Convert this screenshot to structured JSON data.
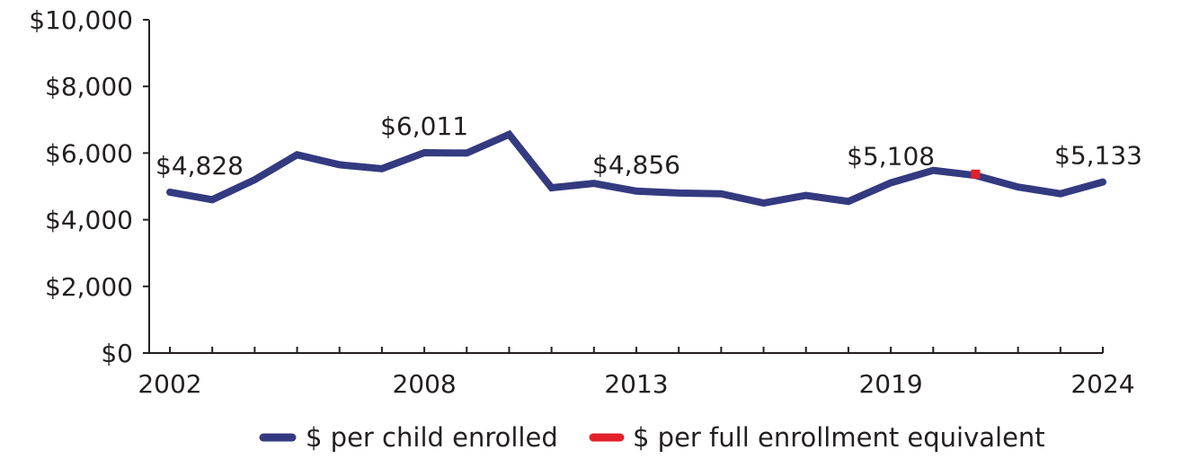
{
  "chart_data": {
    "type": "line",
    "xlim": [
      2002,
      2024
    ],
    "ylim": [
      0,
      10000
    ],
    "yticks": [
      0,
      2000,
      4000,
      6000,
      8000,
      10000
    ],
    "ytick_labels": [
      "$0",
      "$2,000",
      "$4,000",
      "$6,000",
      "$8,000",
      "$10,000"
    ],
    "xticks_labeled": [
      2002,
      2008,
      2013,
      2019,
      2024
    ],
    "xtick_labels": [
      "2002",
      "2008",
      "2013",
      "2019",
      "2024"
    ],
    "grid": false,
    "legend_position": "bottom-center",
    "series": [
      {
        "name": "$ per child enrolled",
        "color": "#343a80",
        "x": [
          2002,
          2003,
          2004,
          2005,
          2006,
          2007,
          2008,
          2009,
          2010,
          2011,
          2012,
          2013,
          2014,
          2015,
          2016,
          2017,
          2018,
          2019,
          2020,
          2021,
          2022,
          2023,
          2024
        ],
        "y": [
          4828,
          4600,
          5200,
          5950,
          5650,
          5530,
          6011,
          6000,
          6560,
          4960,
          5090,
          4856,
          4800,
          4780,
          4500,
          4730,
          4550,
          5108,
          5480,
          5330,
          4980,
          4780,
          5133
        ]
      },
      {
        "name": "$ per full enrollment equivalent",
        "color": "#e3202a",
        "x": [
          2021
        ],
        "y": [
          5370
        ]
      }
    ],
    "data_labels": [
      {
        "x": 2002,
        "y": 4828,
        "text": "$4,828"
      },
      {
        "x": 2008,
        "y": 6011,
        "text": "$6,011"
      },
      {
        "x": 2013,
        "y": 4856,
        "text": "$4,856"
      },
      {
        "x": 2019,
        "y": 5108,
        "text": "$5,108"
      },
      {
        "x": 2024,
        "y": 5133,
        "text": "$5,133"
      }
    ]
  }
}
